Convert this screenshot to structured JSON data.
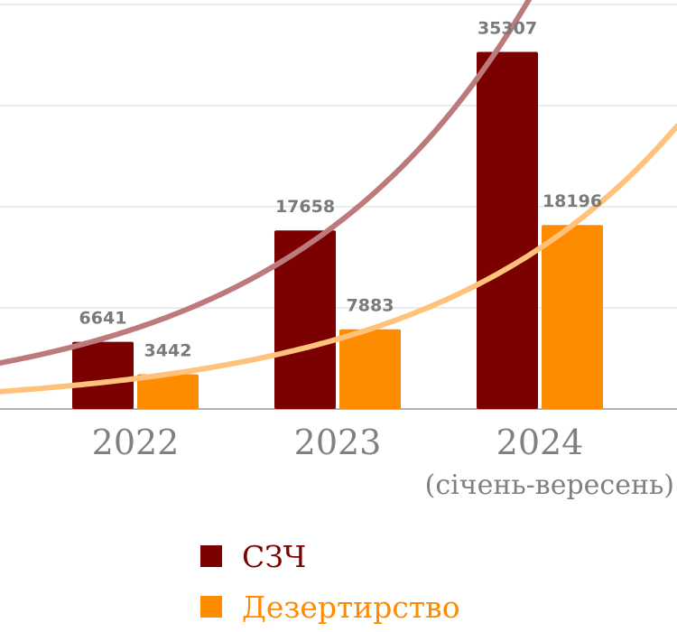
{
  "chart_data": {
    "type": "bar",
    "categories": [
      "2022",
      "2023",
      "2024"
    ],
    "category_sublabels": [
      "",
      "",
      "(січень-вересень)"
    ],
    "series": [
      {
        "name": "СЗЧ",
        "values": [
          6641,
          17658,
          35307
        ],
        "color": "#7b0000",
        "trend_color": "#bc7a7c"
      },
      {
        "name": "Дезертирство",
        "values": [
          3442,
          7883,
          18196
        ],
        "color": "#ff8c00",
        "trend_color": "#ffc27a"
      }
    ],
    "ylim": [
      0,
      40000
    ],
    "grid": true,
    "trendlines": "exponential",
    "legend_position": "bottom"
  }
}
